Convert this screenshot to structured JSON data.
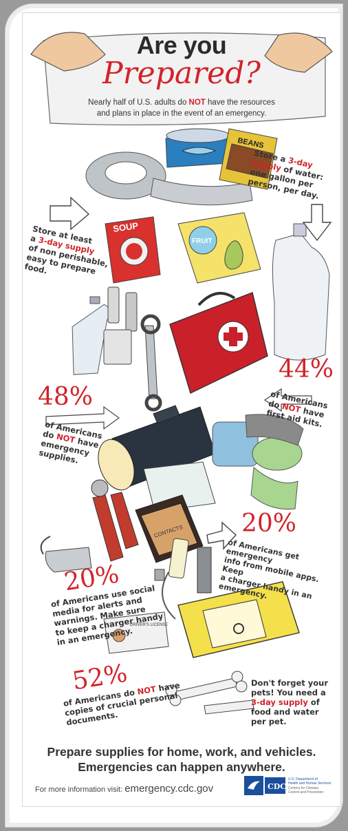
{
  "title": {
    "top": "Are you",
    "bottom": "Prepared?",
    "subtitle_line1": "Nearly half of U.S. adults do ",
    "subtitle_not": "NOT",
    "subtitle_line1b": " have the resources",
    "subtitle_line2": "and plans in place in the event of an emergency."
  },
  "notes": {
    "water": {
      "l1": "Store a ",
      "hl": "3-day",
      "l2": "supply",
      "l3": " of water:",
      "l4": "one gallon per",
      "l5": "person, per day."
    },
    "food": {
      "l1": "Store at least",
      "l2a": "a ",
      "hl": "3-day supply",
      "l3": "of non perishable,",
      "l4": "easy to prepare",
      "l5": "food."
    },
    "stat44": {
      "pct": "44%",
      "l1": "of Americans",
      "l2a": "do ",
      "not": "NOT",
      "l2b": " have",
      "l3": "first aid kits."
    },
    "stat48": {
      "pct": "48%",
      "l1": "of Americans",
      "l2a": "do ",
      "not": "NOT",
      "l2b": " have",
      "l3": "emergency",
      "l4": "supplies."
    },
    "stat20a": {
      "pct": "20%",
      "l1": "of Americans get emergency",
      "l2": "info from mobile apps. Keep",
      "l3": "a charger handy in an",
      "l4": "emergency."
    },
    "stat20b": {
      "pct": "20%",
      "l1": "of Americans use social",
      "l2": "media for alerts and",
      "l3": "warnings. Make sure",
      "l4": "to keep a charger handy",
      "l5": "in an emergency."
    },
    "stat52": {
      "pct": "52%",
      "l1a": "of Americans do ",
      "not": "NOT",
      "l1b": " have",
      "l2": "copies of crucial personal",
      "l3": "documents."
    },
    "pets": {
      "l1": "Don't forget your",
      "l2": "pets! You need a",
      "hl": "3-day supply",
      "l3": " of",
      "l4": "food and water",
      "l5": "per pet."
    }
  },
  "item_labels": {
    "beans": "BEANS",
    "soup": "SOUP",
    "fruit": "FRUIT",
    "contacts": "CONTACTS",
    "license": "DRIVER'S LICENSE"
  },
  "footer": {
    "line1": "Prepare supplies for home, work, and vehicles.",
    "line2": "Emergencies can happen anywhere.",
    "info_label": "For more information visit: ",
    "url": "emergency.cdc.gov",
    "cdc": "CDC",
    "hhs1": "U.S. Department of",
    "hhs2": "Health and Human Services",
    "hhs3": "Centers for Disease",
    "hhs4": "Control and Prevention"
  },
  "colors": {
    "accent_red": "#d2232a",
    "text": "#333333",
    "cdc_blue": "#1b4f9c"
  },
  "icons": [
    "arrow-right-icon",
    "arrow-down-icon",
    "arrow-left-icon",
    "first-aid-icon",
    "power-icon"
  ]
}
